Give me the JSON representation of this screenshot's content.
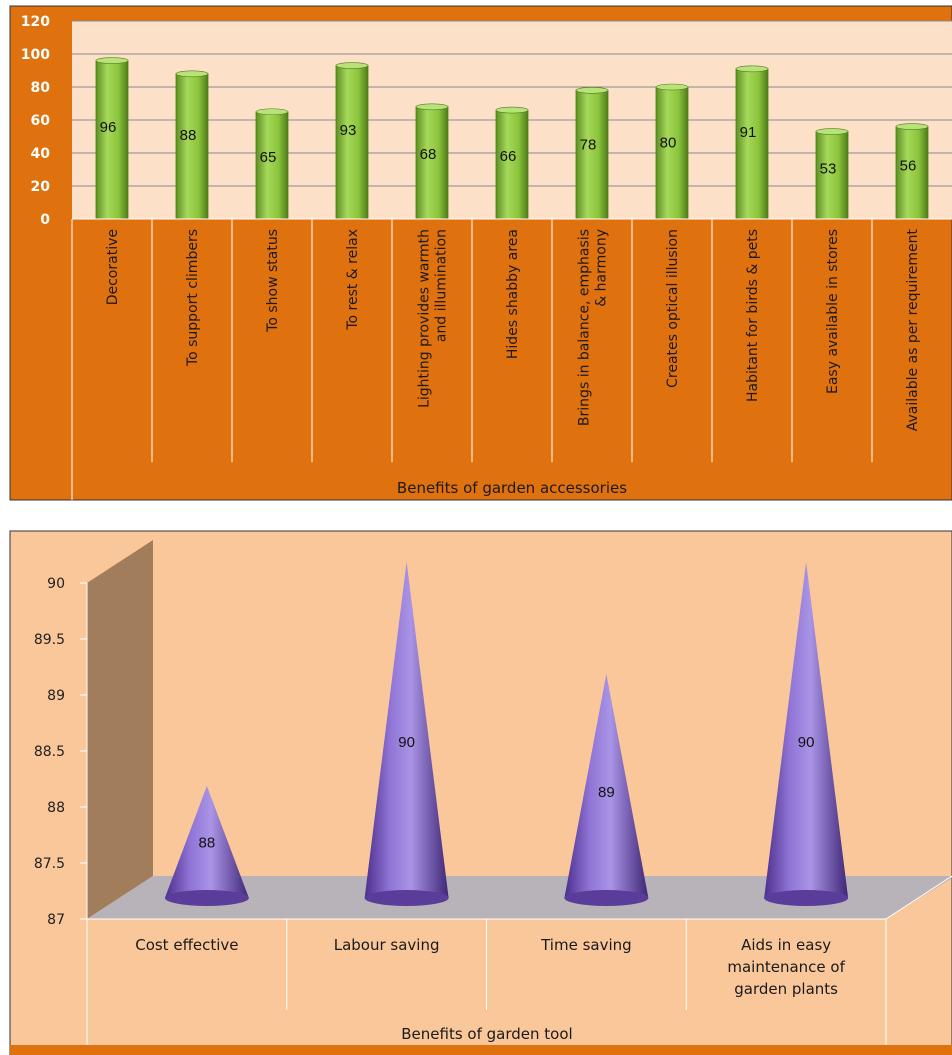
{
  "chart_data": [
    {
      "type": "bar",
      "xlabel": "Benefits of garden accessories",
      "ylabel": "",
      "ylim": [
        0,
        120
      ],
      "yticks": [
        0,
        20,
        40,
        60,
        80,
        100,
        120
      ],
      "grid": true,
      "categories": [
        "Decorative",
        "To support climbers",
        "To show status",
        "To rest & relax",
        "Lighting provides warmth and illumination",
        "Hides shabby area",
        "Brings in balance, emphasis & harmony",
        "Creates optical illusion",
        "Habitant for birds & pets",
        "Easy available in stores",
        "Available as per requirement"
      ],
      "category_lines": [
        [
          "Decorative"
        ],
        [
          "To support climbers"
        ],
        [
          "To show status"
        ],
        [
          "To rest & relax"
        ],
        [
          "Lighting provides warmth",
          "and illumination"
        ],
        [
          "Hides shabby area"
        ],
        [
          "Brings in balance, emphasis",
          "& harmony"
        ],
        [
          "Creates optical illusion"
        ],
        [
          "Habitant for birds & pets"
        ],
        [
          "Easy available in stores"
        ],
        [
          "Available as per requirement"
        ]
      ],
      "values": [
        96,
        88,
        65,
        93,
        68,
        66,
        78,
        80,
        91,
        53,
        56
      ],
      "colors": {
        "frame": "#e0710f",
        "plot": "#fde0c8",
        "bar": "#8dc43f",
        "bar_dark": "#5a8a1e"
      }
    },
    {
      "type": "bar",
      "style": "3d-cone",
      "xlabel": "Benefits of garden tool",
      "ylabel": "",
      "ylim": [
        87,
        90
      ],
      "yticks": [
        "87",
        "87.5",
        "88",
        "88.5",
        "89",
        "89.5",
        "90"
      ],
      "grid": false,
      "categories": [
        "Cost effective",
        "Labour saving",
        "Time saving",
        "Aids in easy maintenance of garden plants"
      ],
      "category_lines": [
        [
          "Cost effective"
        ],
        [
          "Labour saving"
        ],
        [
          "Time saving"
        ],
        [
          "Aids in easy",
          "maintenance of",
          "garden plants"
        ]
      ],
      "values": [
        88,
        90,
        89,
        90
      ],
      "colors": {
        "background": "#fac79b",
        "cone": "#8b6fd0",
        "cone_dark": "#4c2f8c",
        "floor": "#b7b3b9",
        "wall": "#a17d5c",
        "strip": "#e0710f"
      }
    }
  ]
}
